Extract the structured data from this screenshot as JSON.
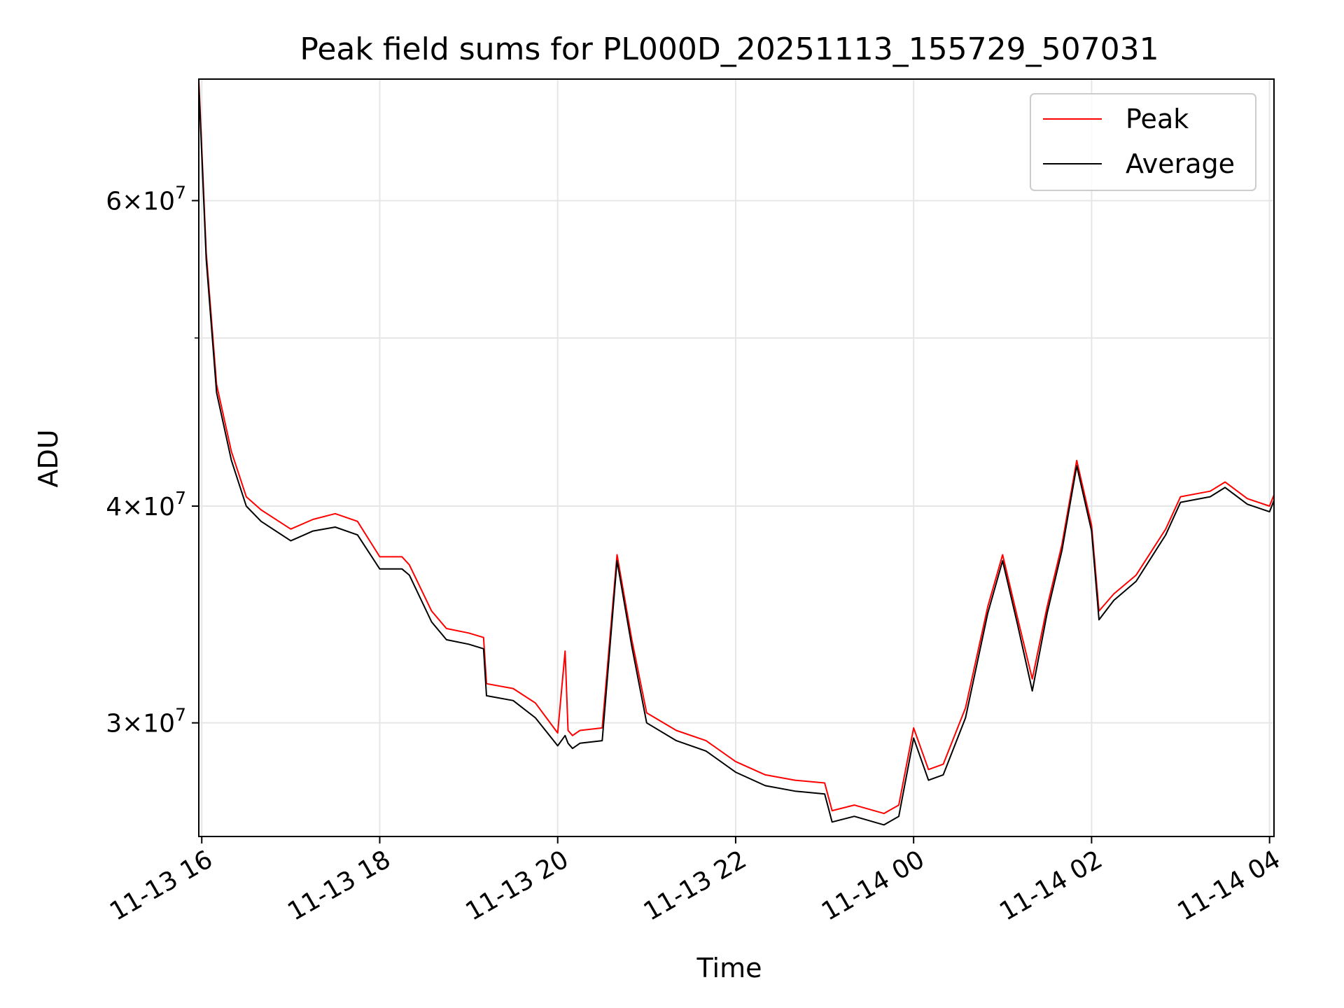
{
  "chart_data": {
    "type": "line",
    "title": "Peak field sums for PL000D_20251113_155729_507031",
    "xlabel": "Time",
    "ylabel": "ADU",
    "yscale": "log",
    "grid": true,
    "legend_position": "top-right",
    "xlim": [
      "2025-11-13 15:58",
      "2025-11-14 04:03"
    ],
    "ylim": [
      25800000,
      70500000
    ],
    "x_ticks": [
      {
        "value": "2025-11-13 16:00",
        "label": "11-13 16"
      },
      {
        "value": "2025-11-13 18:00",
        "label": "11-13 18"
      },
      {
        "value": "2025-11-13 20:00",
        "label": "11-13 20"
      },
      {
        "value": "2025-11-13 22:00",
        "label": "11-13 22"
      },
      {
        "value": "2025-11-14 00:00",
        "label": "11-14 00"
      },
      {
        "value": "2025-11-14 02:00",
        "label": "11-14 02"
      },
      {
        "value": "2025-11-14 04:00",
        "label": "11-14 04"
      }
    ],
    "y_ticks": [
      {
        "value": 30000000,
        "base": "3",
        "exp": "7"
      },
      {
        "value": 40000000,
        "base": "4",
        "exp": "7"
      },
      {
        "value": 60000000,
        "base": "6",
        "exp": "7"
      }
    ],
    "y_minor_ticks": [
      50000000
    ],
    "series": [
      {
        "name": "Peak",
        "color": "#ff0000",
        "x": [
          "2025-11-13 15:58",
          "2025-11-13 16:03",
          "2025-11-13 16:10",
          "2025-11-13 16:20",
          "2025-11-13 16:30",
          "2025-11-13 16:40",
          "2025-11-13 17:00",
          "2025-11-13 17:15",
          "2025-11-13 17:30",
          "2025-11-13 17:45",
          "2025-11-13 18:00",
          "2025-11-13 18:15",
          "2025-11-13 18:20",
          "2025-11-13 18:35",
          "2025-11-13 18:45",
          "2025-11-13 19:00",
          "2025-11-13 19:10",
          "2025-11-13 19:12",
          "2025-11-13 19:30",
          "2025-11-13 19:45",
          "2025-11-13 20:00",
          "2025-11-13 20:05",
          "2025-11-13 20:07",
          "2025-11-13 20:10",
          "2025-11-13 20:15",
          "2025-11-13 20:30",
          "2025-11-13 20:40",
          "2025-11-13 20:50",
          "2025-11-13 21:00",
          "2025-11-13 21:20",
          "2025-11-13 21:40",
          "2025-11-13 22:00",
          "2025-11-13 22:20",
          "2025-11-13 22:40",
          "2025-11-13 23:00",
          "2025-11-13 23:05",
          "2025-11-13 23:20",
          "2025-11-13 23:40",
          "2025-11-13 23:50",
          "2025-11-14 00:00",
          "2025-11-14 00:10",
          "2025-11-14 00:20",
          "2025-11-14 00:35",
          "2025-11-14 00:50",
          "2025-11-14 01:00",
          "2025-11-14 01:10",
          "2025-11-14 01:20",
          "2025-11-14 01:30",
          "2025-11-14 01:40",
          "2025-11-14 01:50",
          "2025-11-14 02:00",
          "2025-11-14 02:05",
          "2025-11-14 02:15",
          "2025-11-14 02:30",
          "2025-11-14 02:50",
          "2025-11-14 03:00",
          "2025-11-14 03:20",
          "2025-11-14 03:30",
          "2025-11-14 03:45",
          "2025-11-14 04:00",
          "2025-11-14 04:03"
        ],
        "values": [
          70500000,
          56000000,
          47000000,
          43000000,
          40500000,
          39800000,
          38800000,
          39300000,
          39600000,
          39200000,
          37400000,
          37400000,
          37000000,
          34800000,
          34000000,
          33800000,
          33600000,
          31600000,
          31400000,
          30800000,
          29600000,
          33000000,
          29700000,
          29500000,
          29700000,
          29800000,
          37500000,
          33500000,
          30400000,
          29700000,
          29300000,
          28500000,
          28000000,
          27800000,
          27700000,
          26700000,
          26900000,
          26600000,
          26900000,
          29800000,
          28200000,
          28400000,
          30600000,
          35000000,
          37500000,
          34500000,
          31800000,
          35000000,
          38000000,
          42500000,
          39000000,
          34800000,
          35600000,
          36500000,
          38800000,
          40500000,
          40800000,
          41300000,
          40400000,
          40000000,
          40600000
        ]
      },
      {
        "name": "Average",
        "color": "#000000",
        "x": [
          "2025-11-13 15:58",
          "2025-11-13 16:03",
          "2025-11-13 16:10",
          "2025-11-13 16:20",
          "2025-11-13 16:30",
          "2025-11-13 16:40",
          "2025-11-13 17:00",
          "2025-11-13 17:15",
          "2025-11-13 17:30",
          "2025-11-13 17:45",
          "2025-11-13 18:00",
          "2025-11-13 18:15",
          "2025-11-13 18:20",
          "2025-11-13 18:35",
          "2025-11-13 18:45",
          "2025-11-13 19:00",
          "2025-11-13 19:10",
          "2025-11-13 19:12",
          "2025-11-13 19:30",
          "2025-11-13 19:45",
          "2025-11-13 20:00",
          "2025-11-13 20:05",
          "2025-11-13 20:07",
          "2025-11-13 20:10",
          "2025-11-13 20:15",
          "2025-11-13 20:30",
          "2025-11-13 20:40",
          "2025-11-13 20:50",
          "2025-11-13 21:00",
          "2025-11-13 21:20",
          "2025-11-13 21:40",
          "2025-11-13 22:00",
          "2025-11-13 22:20",
          "2025-11-13 22:40",
          "2025-11-13 23:00",
          "2025-11-13 23:05",
          "2025-11-13 23:20",
          "2025-11-13 23:40",
          "2025-11-13 23:50",
          "2025-11-14 00:00",
          "2025-11-14 00:10",
          "2025-11-14 00:20",
          "2025-11-14 00:35",
          "2025-11-14 00:50",
          "2025-11-14 01:00",
          "2025-11-14 01:10",
          "2025-11-14 01:20",
          "2025-11-14 01:30",
          "2025-11-14 01:40",
          "2025-11-14 01:50",
          "2025-11-14 02:00",
          "2025-11-14 02:05",
          "2025-11-14 02:15",
          "2025-11-14 02:30",
          "2025-11-14 02:50",
          "2025-11-14 03:00",
          "2025-11-14 03:20",
          "2025-11-14 03:30",
          "2025-11-14 03:45",
          "2025-11-14 04:00",
          "2025-11-14 04:03"
        ],
        "values": [
          70000000,
          55500000,
          46500000,
          42500000,
          40000000,
          39200000,
          38200000,
          38700000,
          38900000,
          38500000,
          36800000,
          36800000,
          36500000,
          34300000,
          33500000,
          33300000,
          33100000,
          31100000,
          30900000,
          30200000,
          29100000,
          29500000,
          29200000,
          29000000,
          29200000,
          29300000,
          37200000,
          33200000,
          30000000,
          29300000,
          28900000,
          28100000,
          27600000,
          27400000,
          27300000,
          26300000,
          26500000,
          26200000,
          26500000,
          29400000,
          27800000,
          28000000,
          30200000,
          34700000,
          37200000,
          34200000,
          31300000,
          34700000,
          37700000,
          42200000,
          38700000,
          34400000,
          35300000,
          36200000,
          38500000,
          40200000,
          40500000,
          41000000,
          40100000,
          39700000,
          40300000
        ]
      }
    ]
  }
}
